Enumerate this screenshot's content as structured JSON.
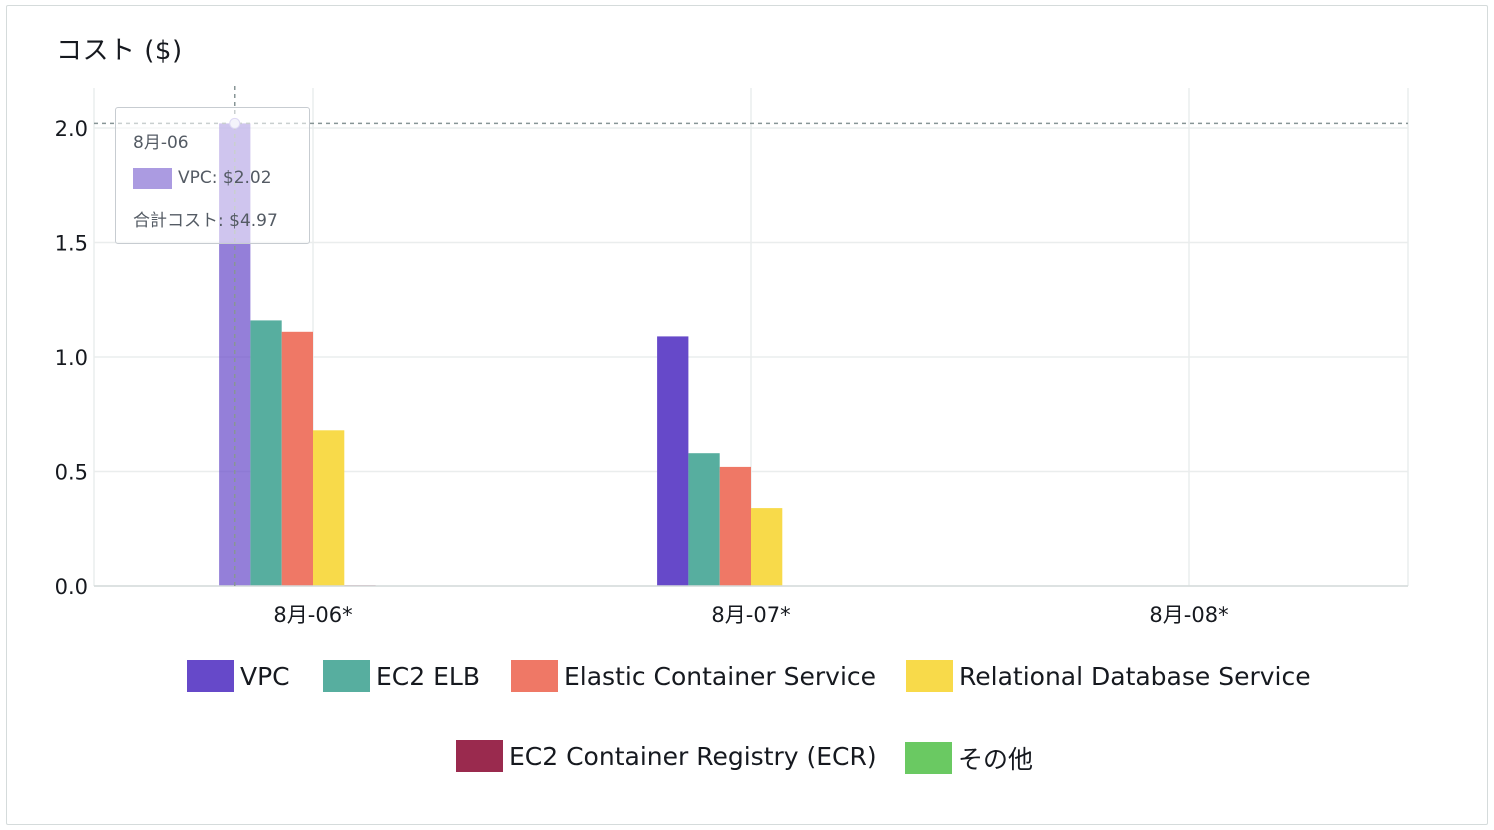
{
  "chart_data": {
    "type": "bar",
    "title": "コスト ($)",
    "xlabel": "",
    "ylabel": "",
    "categories": [
      "8月-06*",
      "8月-07*",
      "8月-08*"
    ],
    "ylim": [
      0,
      2.0
    ],
    "yticks": [
      "0.0",
      "0.5",
      "1.0",
      "1.5",
      "2.0"
    ],
    "grid": true,
    "legend_position": "bottom",
    "series": [
      {
        "name": "VPC",
        "color": "#6649c9",
        "values": [
          2.02,
          1.09,
          0
        ]
      },
      {
        "name": "EC2 ELB",
        "color": "#57ae9f",
        "values": [
          1.16,
          0.58,
          0
        ]
      },
      {
        "name": "Elastic Container Service",
        "color": "#ef7866",
        "values": [
          1.11,
          0.52,
          0
        ]
      },
      {
        "name": "Relational Database Service",
        "color": "#f8da4a",
        "values": [
          0.68,
          0.34,
          0
        ]
      },
      {
        "name": "EC2 Container Registry (ECR)",
        "color": "#9a2a4e",
        "values": [
          0.003,
          0.002,
          0
        ]
      },
      {
        "name": "その他",
        "color": "#6ac962",
        "values": [
          0,
          0,
          0
        ]
      }
    ],
    "tooltip": {
      "date": "8月-06",
      "line": "VPC: $2.02",
      "total": "合計コスト: $4.97"
    }
  }
}
